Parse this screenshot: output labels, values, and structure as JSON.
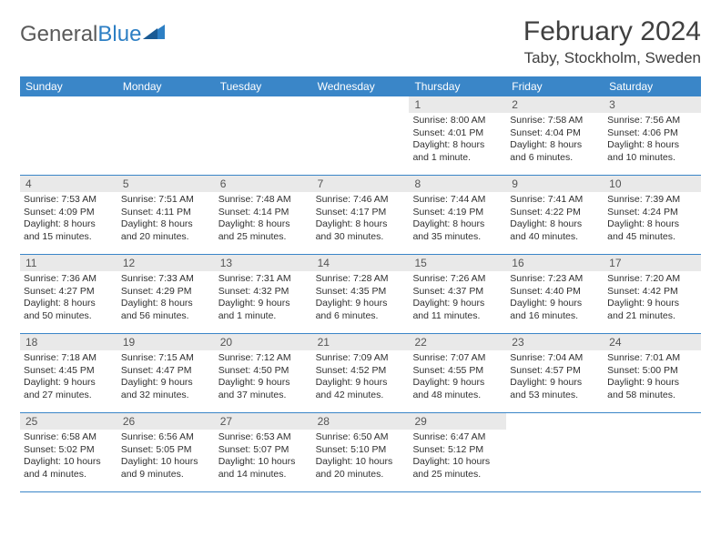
{
  "logo": {
    "part1": "General",
    "part2": "Blue"
  },
  "title": "February 2024",
  "location": "Taby, Stockholm, Sweden",
  "colors": {
    "header_bg": "#3a86c8",
    "header_text": "#ffffff",
    "daynum_bg": "#e9e9e9",
    "daynum_text": "#555555",
    "body_text": "#303030",
    "row_border": "#3a86c8",
    "logo_gray": "#5a5a5a",
    "logo_blue": "#2d7fc4",
    "title_color": "#404040"
  },
  "typography": {
    "title_fontsize": 30,
    "location_fontsize": 17,
    "weekday_fontsize": 12,
    "daynum_fontsize": 12,
    "body_fontsize": 10.5
  },
  "weekdays": [
    "Sunday",
    "Monday",
    "Tuesday",
    "Wednesday",
    "Thursday",
    "Friday",
    "Saturday"
  ],
  "weeks": [
    [
      {
        "num": "",
        "sunrise": "",
        "sunset": "",
        "daylight": ""
      },
      {
        "num": "",
        "sunrise": "",
        "sunset": "",
        "daylight": ""
      },
      {
        "num": "",
        "sunrise": "",
        "sunset": "",
        "daylight": ""
      },
      {
        "num": "",
        "sunrise": "",
        "sunset": "",
        "daylight": ""
      },
      {
        "num": "1",
        "sunrise": "Sunrise: 8:00 AM",
        "sunset": "Sunset: 4:01 PM",
        "daylight": "Daylight: 8 hours and 1 minute."
      },
      {
        "num": "2",
        "sunrise": "Sunrise: 7:58 AM",
        "sunset": "Sunset: 4:04 PM",
        "daylight": "Daylight: 8 hours and 6 minutes."
      },
      {
        "num": "3",
        "sunrise": "Sunrise: 7:56 AM",
        "sunset": "Sunset: 4:06 PM",
        "daylight": "Daylight: 8 hours and 10 minutes."
      }
    ],
    [
      {
        "num": "4",
        "sunrise": "Sunrise: 7:53 AM",
        "sunset": "Sunset: 4:09 PM",
        "daylight": "Daylight: 8 hours and 15 minutes."
      },
      {
        "num": "5",
        "sunrise": "Sunrise: 7:51 AM",
        "sunset": "Sunset: 4:11 PM",
        "daylight": "Daylight: 8 hours and 20 minutes."
      },
      {
        "num": "6",
        "sunrise": "Sunrise: 7:48 AM",
        "sunset": "Sunset: 4:14 PM",
        "daylight": "Daylight: 8 hours and 25 minutes."
      },
      {
        "num": "7",
        "sunrise": "Sunrise: 7:46 AM",
        "sunset": "Sunset: 4:17 PM",
        "daylight": "Daylight: 8 hours and 30 minutes."
      },
      {
        "num": "8",
        "sunrise": "Sunrise: 7:44 AM",
        "sunset": "Sunset: 4:19 PM",
        "daylight": "Daylight: 8 hours and 35 minutes."
      },
      {
        "num": "9",
        "sunrise": "Sunrise: 7:41 AM",
        "sunset": "Sunset: 4:22 PM",
        "daylight": "Daylight: 8 hours and 40 minutes."
      },
      {
        "num": "10",
        "sunrise": "Sunrise: 7:39 AM",
        "sunset": "Sunset: 4:24 PM",
        "daylight": "Daylight: 8 hours and 45 minutes."
      }
    ],
    [
      {
        "num": "11",
        "sunrise": "Sunrise: 7:36 AM",
        "sunset": "Sunset: 4:27 PM",
        "daylight": "Daylight: 8 hours and 50 minutes."
      },
      {
        "num": "12",
        "sunrise": "Sunrise: 7:33 AM",
        "sunset": "Sunset: 4:29 PM",
        "daylight": "Daylight: 8 hours and 56 minutes."
      },
      {
        "num": "13",
        "sunrise": "Sunrise: 7:31 AM",
        "sunset": "Sunset: 4:32 PM",
        "daylight": "Daylight: 9 hours and 1 minute."
      },
      {
        "num": "14",
        "sunrise": "Sunrise: 7:28 AM",
        "sunset": "Sunset: 4:35 PM",
        "daylight": "Daylight: 9 hours and 6 minutes."
      },
      {
        "num": "15",
        "sunrise": "Sunrise: 7:26 AM",
        "sunset": "Sunset: 4:37 PM",
        "daylight": "Daylight: 9 hours and 11 minutes."
      },
      {
        "num": "16",
        "sunrise": "Sunrise: 7:23 AM",
        "sunset": "Sunset: 4:40 PM",
        "daylight": "Daylight: 9 hours and 16 minutes."
      },
      {
        "num": "17",
        "sunrise": "Sunrise: 7:20 AM",
        "sunset": "Sunset: 4:42 PM",
        "daylight": "Daylight: 9 hours and 21 minutes."
      }
    ],
    [
      {
        "num": "18",
        "sunrise": "Sunrise: 7:18 AM",
        "sunset": "Sunset: 4:45 PM",
        "daylight": "Daylight: 9 hours and 27 minutes."
      },
      {
        "num": "19",
        "sunrise": "Sunrise: 7:15 AM",
        "sunset": "Sunset: 4:47 PM",
        "daylight": "Daylight: 9 hours and 32 minutes."
      },
      {
        "num": "20",
        "sunrise": "Sunrise: 7:12 AM",
        "sunset": "Sunset: 4:50 PM",
        "daylight": "Daylight: 9 hours and 37 minutes."
      },
      {
        "num": "21",
        "sunrise": "Sunrise: 7:09 AM",
        "sunset": "Sunset: 4:52 PM",
        "daylight": "Daylight: 9 hours and 42 minutes."
      },
      {
        "num": "22",
        "sunrise": "Sunrise: 7:07 AM",
        "sunset": "Sunset: 4:55 PM",
        "daylight": "Daylight: 9 hours and 48 minutes."
      },
      {
        "num": "23",
        "sunrise": "Sunrise: 7:04 AM",
        "sunset": "Sunset: 4:57 PM",
        "daylight": "Daylight: 9 hours and 53 minutes."
      },
      {
        "num": "24",
        "sunrise": "Sunrise: 7:01 AM",
        "sunset": "Sunset: 5:00 PM",
        "daylight": "Daylight: 9 hours and 58 minutes."
      }
    ],
    [
      {
        "num": "25",
        "sunrise": "Sunrise: 6:58 AM",
        "sunset": "Sunset: 5:02 PM",
        "daylight": "Daylight: 10 hours and 4 minutes."
      },
      {
        "num": "26",
        "sunrise": "Sunrise: 6:56 AM",
        "sunset": "Sunset: 5:05 PM",
        "daylight": "Daylight: 10 hours and 9 minutes."
      },
      {
        "num": "27",
        "sunrise": "Sunrise: 6:53 AM",
        "sunset": "Sunset: 5:07 PM",
        "daylight": "Daylight: 10 hours and 14 minutes."
      },
      {
        "num": "28",
        "sunrise": "Sunrise: 6:50 AM",
        "sunset": "Sunset: 5:10 PM",
        "daylight": "Daylight: 10 hours and 20 minutes."
      },
      {
        "num": "29",
        "sunrise": "Sunrise: 6:47 AM",
        "sunset": "Sunset: 5:12 PM",
        "daylight": "Daylight: 10 hours and 25 minutes."
      },
      {
        "num": "",
        "sunrise": "",
        "sunset": "",
        "daylight": ""
      },
      {
        "num": "",
        "sunrise": "",
        "sunset": "",
        "daylight": ""
      }
    ]
  ]
}
